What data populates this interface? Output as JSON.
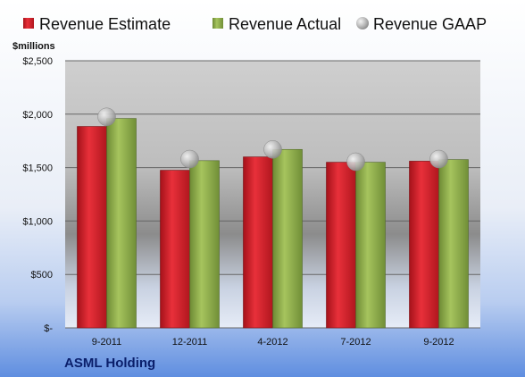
{
  "chart_data": {
    "type": "bar",
    "units_label": "$millions",
    "company": "ASML Holding",
    "categories": [
      "9-2011",
      "12-2011",
      "4-2012",
      "7-2012",
      "9-2012"
    ],
    "series": [
      {
        "name": "Revenue Estimate",
        "kind": "bar",
        "color": "#d0202a",
        "values": [
          1885,
          1475,
          1600,
          1550,
          1560
        ]
      },
      {
        "name": "Revenue Actual",
        "kind": "bar",
        "color": "#8fb04a",
        "values": [
          1960,
          1565,
          1670,
          1550,
          1575
        ]
      },
      {
        "name": "Revenue GAAP",
        "kind": "marker",
        "color": "#b8b8b8",
        "values": [
          1975,
          1580,
          1670,
          1555,
          1580
        ]
      }
    ],
    "ylim": [
      0,
      2500
    ],
    "yticks": [
      0,
      500,
      1000,
      1500,
      2000,
      2500
    ],
    "ytick_labels": [
      "$-",
      "$500",
      "$1,000",
      "$1,500",
      "$2,000",
      "$2,500"
    ],
    "grid": true,
    "legend_position": "top"
  }
}
